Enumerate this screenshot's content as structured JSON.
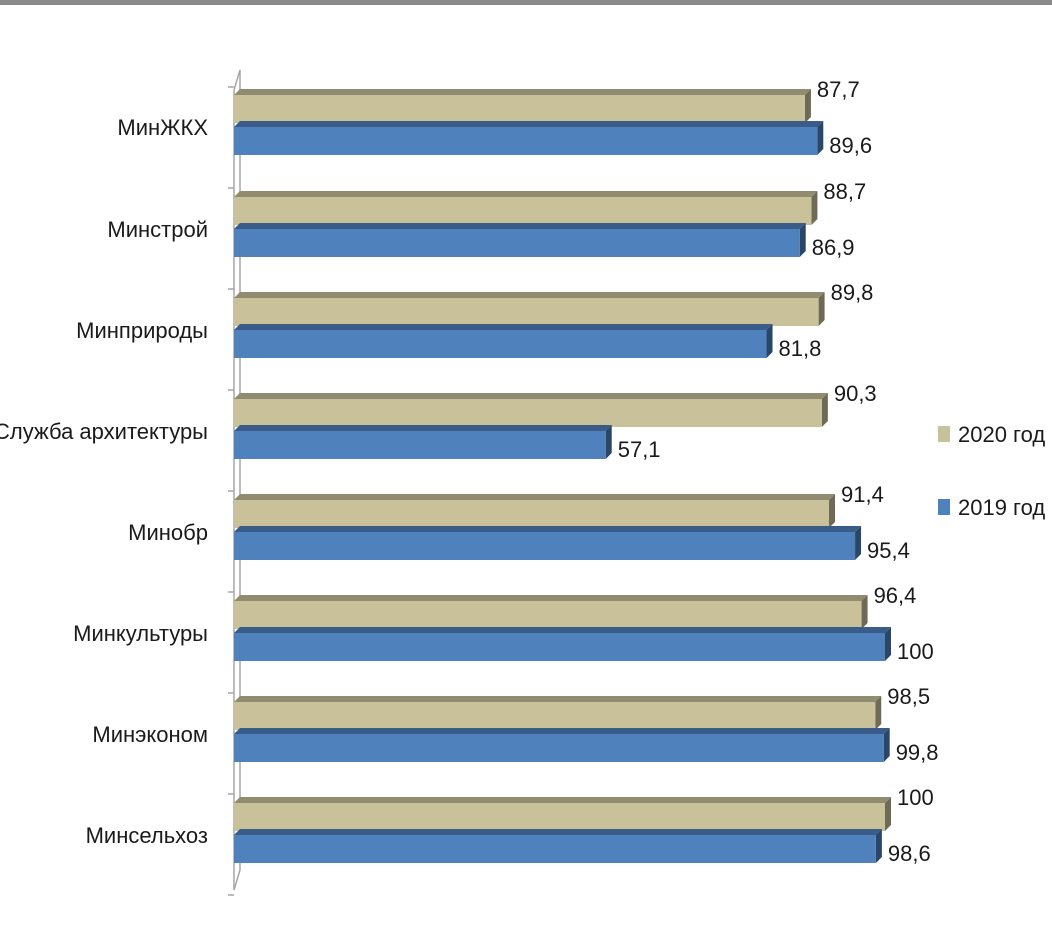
{
  "chart_data": {
    "type": "bar",
    "orientation": "horizontal",
    "categories": [
      "МинЖКХ",
      "Минстрой",
      "Минприроды",
      "Служба архитектуры",
      "Минобр",
      "Минкультуры",
      "Минэконом",
      "Минсельхоз"
    ],
    "series": [
      {
        "name": "2020 год",
        "color": "#c9c19a",
        "values": [
          87.7,
          88.7,
          89.8,
          90.3,
          91.4,
          96.4,
          98.5,
          100
        ]
      },
      {
        "name": "2019 год",
        "color": "#4f81bd",
        "values": [
          89.6,
          86.9,
          81.8,
          57.1,
          95.4,
          100,
          99.8,
          98.6
        ]
      }
    ],
    "value_labels": {
      "2020 год": [
        "87,7",
        "88,7",
        "89,8",
        "90,3",
        "91,4",
        "96,4",
        "98,5",
        "100"
      ],
      "2019 год": [
        "89,6",
        "86,9",
        "81,8",
        "57,1",
        "95,4",
        "100",
        "99,8",
        "98,6"
      ]
    },
    "xlim": [
      0,
      100
    ],
    "grid": false,
    "legend_position": "right",
    "style": "3d"
  }
}
